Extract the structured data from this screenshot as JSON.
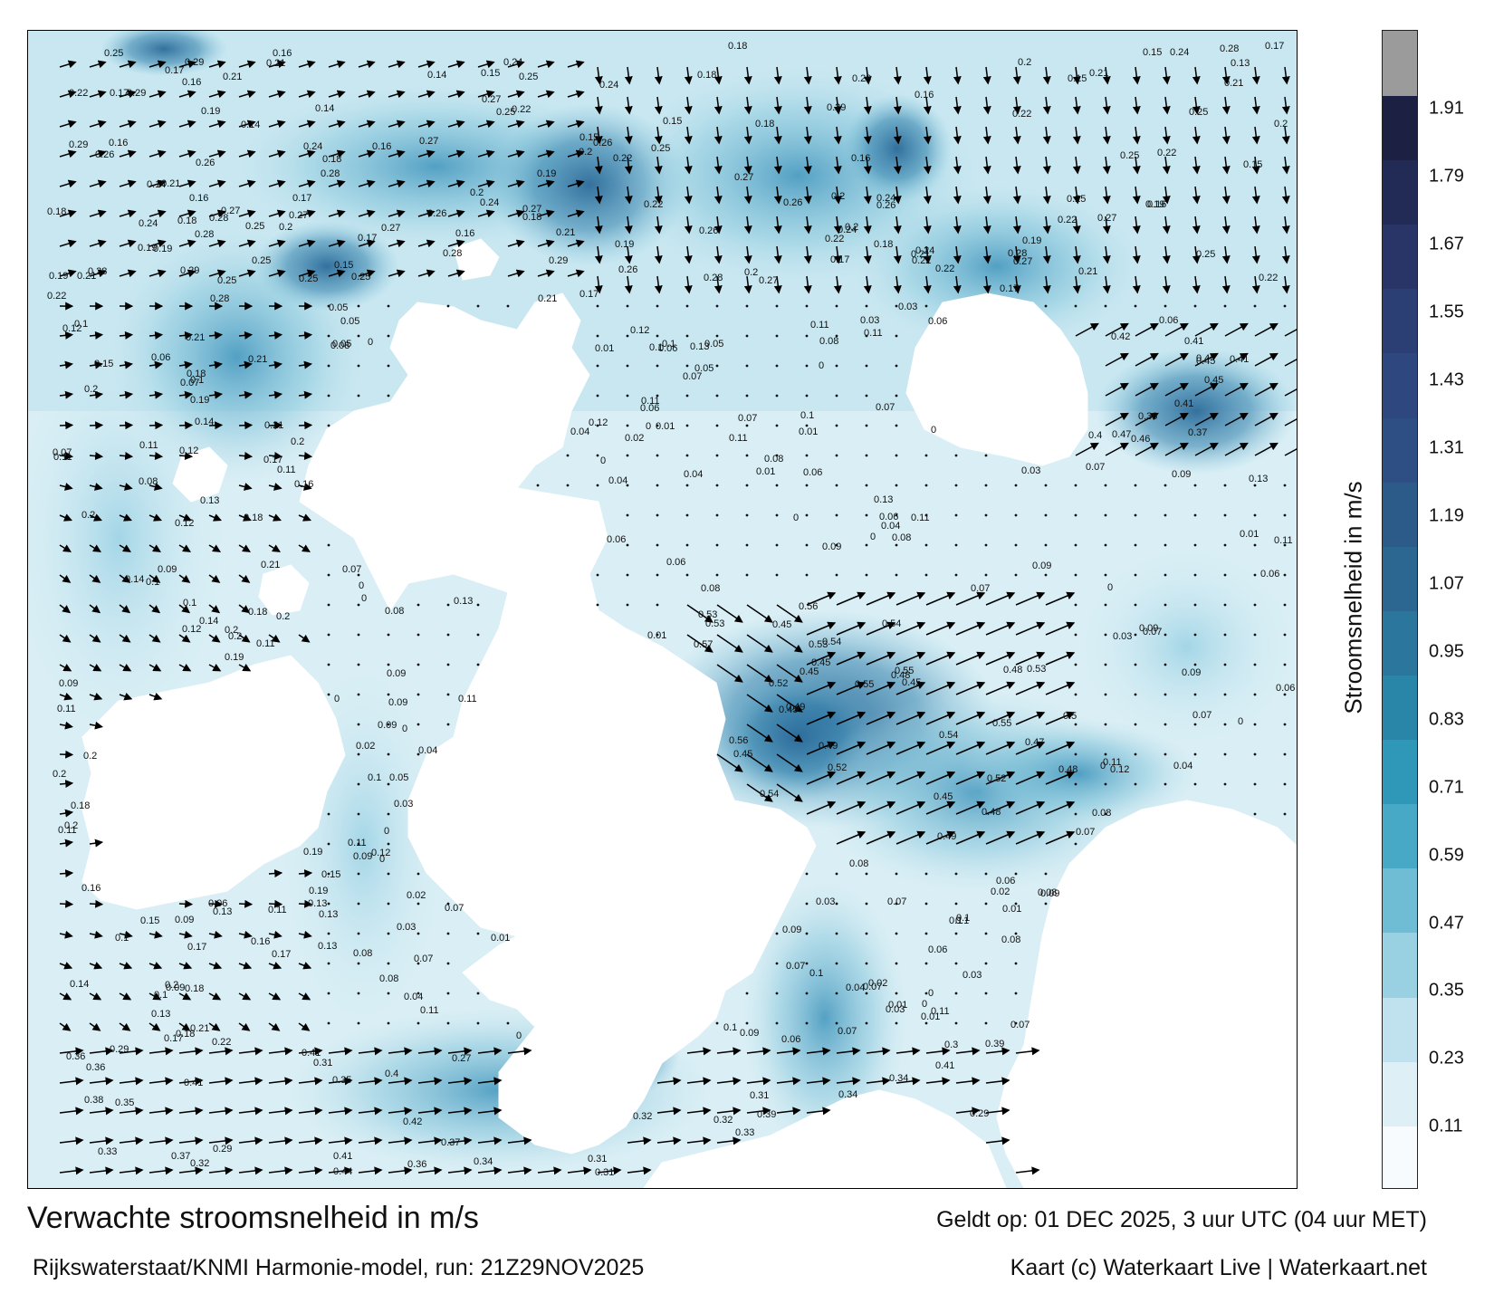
{
  "title": "Verwachte stroomsnelheid in m/s",
  "subtitle": "Rijkswaterstaat/KNMI Harmonie-model, run: 21Z29NOV2025",
  "valid_time": "Geldt op: 01 DEC 2025, 3 uur UTC (04 uur MET)",
  "credit": "Kaart (c) Waterkaart Live | Waterkaart.net",
  "colorbar": {
    "title": "Stroomsnelheid in m/s",
    "ticks": [
      "1.91",
      "1.79",
      "1.67",
      "1.55",
      "1.43",
      "1.31",
      "1.19",
      "1.07",
      "0.95",
      "0.83",
      "0.71",
      "0.59",
      "0.47",
      "0.35",
      "0.23",
      "0.11"
    ],
    "tick_values": [
      1.91,
      1.79,
      1.67,
      1.55,
      1.43,
      1.31,
      1.19,
      1.07,
      0.95,
      0.83,
      0.71,
      0.59,
      0.47,
      0.35,
      0.23,
      0.11
    ],
    "min": 0,
    "max": 2.05,
    "colors": [
      "#f7fbfd",
      "#def0f6",
      "#bfe2ee",
      "#99d1e2",
      "#6fbdd4",
      "#47a9c6",
      "#2f97b7",
      "#2a86a9",
      "#2a769c",
      "#2b6791",
      "#2c5a89",
      "#2e4f84",
      "#2e477e",
      "#2c3f74",
      "#283566",
      "#222b56",
      "#1c2144",
      "#9b9b9b"
    ]
  },
  "speed_labels": [
    {
      "text": "0.12",
      "v": 0.12
    },
    {
      "text": "0.2",
      "v": 0.2
    },
    {
      "text": "0.19",
      "v": 0.19
    },
    {
      "text": "0.18",
      "v": 0.18
    },
    {
      "text": "0.17",
      "v": 0.17
    },
    {
      "text": "0.13",
      "v": 0.13
    },
    {
      "text": "0.16",
      "v": 0.16
    },
    {
      "text": "0.02",
      "v": 0.02
    },
    {
      "text": "0.11",
      "v": 0.11
    },
    {
      "text": "0.1",
      "v": 0.1
    },
    {
      "text": "0.07",
      "v": 0.07
    },
    {
      "text": "0.06",
      "v": 0.06
    },
    {
      "text": "0.08",
      "v": 0.08
    },
    {
      "text": "0.09",
      "v": 0.09
    },
    {
      "text": "0.05",
      "v": 0.05
    },
    {
      "text": "0.04",
      "v": 0.04
    },
    {
      "text": "0.03",
      "v": 0.03
    },
    {
      "text": "0.01",
      "v": 0.01
    },
    {
      "text": "0.15",
      "v": 0.15
    },
    {
      "text": "0.14",
      "v": 0.14
    },
    {
      "text": "0.21",
      "v": 0.21
    },
    {
      "text": "0.22",
      "v": 0.22
    },
    {
      "text": "0.24",
      "v": 0.24
    },
    {
      "text": "0.25",
      "v": 0.25
    },
    {
      "text": "0.26",
      "v": 0.26
    },
    {
      "text": "0.27",
      "v": 0.27
    },
    {
      "text": "0.28",
      "v": 0.28
    },
    {
      "text": "0.29",
      "v": 0.29
    },
    {
      "text": "0.3",
      "v": 0.3
    },
    {
      "text": "0.31",
      "v": 0.31
    },
    {
      "text": "0.32",
      "v": 0.32
    },
    {
      "text": "0.33",
      "v": 0.33
    },
    {
      "text": "0.34",
      "v": 0.34
    },
    {
      "text": "0.35",
      "v": 0.35
    },
    {
      "text": "0.36",
      "v": 0.36
    },
    {
      "text": "0.37",
      "v": 0.37
    },
    {
      "text": "0.38",
      "v": 0.38
    },
    {
      "text": "0.39",
      "v": 0.39
    },
    {
      "text": "0.4",
      "v": 0.4
    },
    {
      "text": "0.41",
      "v": 0.41
    },
    {
      "text": "0.42",
      "v": 0.42
    },
    {
      "text": "0.43",
      "v": 0.43
    },
    {
      "text": "0.44",
      "v": 0.44
    },
    {
      "text": "0.45",
      "v": 0.45
    },
    {
      "text": "0.46",
      "v": 0.46
    },
    {
      "text": "0.47",
      "v": 0.47
    },
    {
      "text": "0.48",
      "v": 0.48
    },
    {
      "text": "0.49",
      "v": 0.49
    },
    {
      "text": "0.5",
      "v": 0.5
    },
    {
      "text": "0.51",
      "v": 0.51
    },
    {
      "text": "0.52",
      "v": 0.52
    },
    {
      "text": "0.53",
      "v": 0.53
    },
    {
      "text": "0.54",
      "v": 0.54
    },
    {
      "text": "0.55",
      "v": 0.55
    },
    {
      "text": "0.56",
      "v": 0.56
    },
    {
      "text": "0.57",
      "v": 0.57
    },
    {
      "text": "0.58",
      "v": 0.58
    },
    {
      "text": "0.59",
      "v": 0.59
    },
    {
      "text": "0.61",
      "v": 0.61
    },
    {
      "text": "0.62",
      "v": 0.62
    },
    {
      "text": "0.63",
      "v": 0.63
    },
    {
      "text": "0.65",
      "v": 0.65
    },
    {
      "text": "0.67",
      "v": 0.67
    },
    {
      "text": "0.69",
      "v": 0.69
    },
    {
      "text": "0.71",
      "v": 0.71
    },
    {
      "text": "0.72",
      "v": 0.72
    },
    {
      "text": "0",
      "v": 0
    }
  ]
}
